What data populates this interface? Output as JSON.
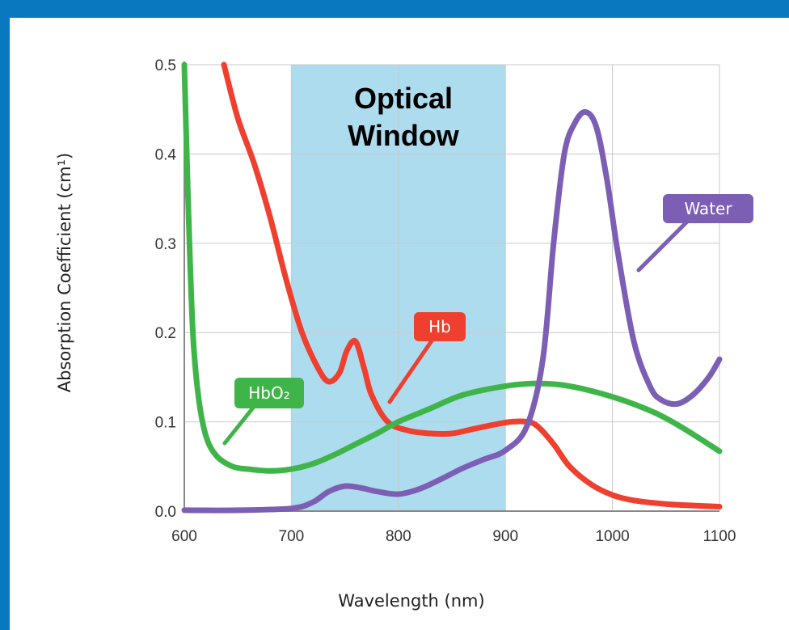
{
  "chart_data": {
    "type": "line",
    "title": "",
    "xlabel": "Wavelength (nm)",
    "ylabel": "Absorption Coefficient (cm¹)",
    "xlim": [
      600,
      1100
    ],
    "ylim": [
      0,
      0.5
    ],
    "xticks": [
      "600",
      "700",
      "800",
      "900",
      "1000",
      "1100"
    ],
    "yticks": [
      "0.0",
      "0.1",
      "0.2",
      "0.3",
      "0.4",
      "0.5"
    ],
    "grid": true,
    "annotation": {
      "text_lines": [
        "Optical",
        "Window"
      ],
      "x_range": [
        700,
        900
      ],
      "color": "#9fd6ec"
    },
    "series": [
      {
        "name": "Hb",
        "color": "#ef3f2f",
        "x": [
          637,
          650,
          665,
          680,
          695,
          710,
          725,
          735,
          745,
          752,
          760,
          768,
          775,
          790,
          810,
          830,
          850,
          870,
          890,
          905,
          920,
          930,
          945,
          960,
          980,
          1000,
          1020,
          1050,
          1080,
          1100
        ],
        "y": [
          0.5,
          0.44,
          0.39,
          0.33,
          0.26,
          0.2,
          0.16,
          0.145,
          0.155,
          0.18,
          0.19,
          0.16,
          0.13,
          0.1,
          0.09,
          0.087,
          0.087,
          0.092,
          0.097,
          0.1,
          0.1,
          0.095,
          0.075,
          0.05,
          0.03,
          0.018,
          0.012,
          0.008,
          0.006,
          0.005
        ]
      },
      {
        "name": "HbO2",
        "color": "#3fb549",
        "x": [
          600,
          604,
          608,
          613,
          620,
          630,
          645,
          660,
          680,
          700,
          720,
          740,
          760,
          780,
          800,
          830,
          860,
          900,
          930,
          960,
          1000,
          1040,
          1070,
          1100
        ],
        "y": [
          0.5,
          0.33,
          0.2,
          0.13,
          0.085,
          0.062,
          0.05,
          0.047,
          0.045,
          0.047,
          0.053,
          0.063,
          0.075,
          0.087,
          0.1,
          0.115,
          0.13,
          0.14,
          0.143,
          0.14,
          0.128,
          0.11,
          0.09,
          0.067
        ]
      },
      {
        "name": "Water",
        "color": "#7c5fb4",
        "x": [
          600,
          650,
          700,
          720,
          735,
          750,
          765,
          780,
          800,
          820,
          840,
          860,
          880,
          900,
          920,
          935,
          945,
          955,
          965,
          975,
          985,
          995,
          1005,
          1020,
          1035,
          1045,
          1060,
          1075,
          1090,
          1100
        ],
        "y": [
          0.001,
          0.001,
          0.003,
          0.01,
          0.022,
          0.028,
          0.026,
          0.022,
          0.019,
          0.025,
          0.036,
          0.048,
          0.058,
          0.068,
          0.095,
          0.17,
          0.3,
          0.4,
          0.435,
          0.447,
          0.43,
          0.37,
          0.29,
          0.19,
          0.14,
          0.125,
          0.12,
          0.13,
          0.15,
          0.17
        ]
      }
    ],
    "callouts": [
      {
        "series": "Water",
        "text": "Water"
      },
      {
        "series": "Hb",
        "text": "Hb"
      },
      {
        "series": "HbO2",
        "text": "HbO₂"
      }
    ]
  }
}
